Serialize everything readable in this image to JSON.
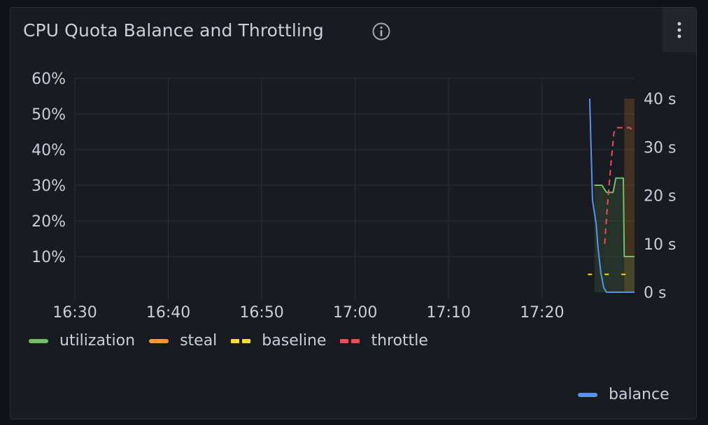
{
  "panel": {
    "title": "CPU Quota Balance and Throttling"
  },
  "colors": {
    "utilization": "#73bf69",
    "steal": "#ff9830",
    "baseline": "#fade2a",
    "throttle": "#f2495c",
    "balance": "#5794f2",
    "grid": "#2c3038",
    "text": "#ccccdc"
  },
  "icons": {
    "info": "info-circle-icon",
    "menu": "kebab-menu-icon"
  },
  "chart_data": {
    "type": "line",
    "x_ticks": [
      "16:30",
      "16:40",
      "16:50",
      "17:00",
      "17:10",
      "17:20"
    ],
    "y_left_ticks": [
      "10%",
      "20%",
      "30%",
      "40%",
      "50%",
      "60%"
    ],
    "y_right_ticks": [
      "0 s",
      "10 s",
      "20 s",
      "30 s",
      "40 s"
    ],
    "x_range_minutes": [
      0,
      59.9
    ],
    "y_left_range": [
      0,
      60
    ],
    "y_right_range": [
      0,
      40
    ],
    "grid": true,
    "legend_placement": "bottom",
    "series": [
      {
        "name": "utilization",
        "axis": "left",
        "style": "solid-fill",
        "color": "#73bf69",
        "points": [
          [
            55.6,
            30
          ],
          [
            56.4,
            30
          ],
          [
            56.9,
            28
          ],
          [
            57.6,
            28
          ],
          [
            57.9,
            32
          ],
          [
            58.7,
            32
          ],
          [
            58.8,
            10
          ],
          [
            59.9,
            10
          ]
        ]
      },
      {
        "name": "steal",
        "axis": "left",
        "style": "solid",
        "color": "#ff9830",
        "points": []
      },
      {
        "name": "baseline",
        "axis": "left",
        "style": "dashed",
        "color": "#fade2a",
        "points": [
          [
            54.9,
            5
          ],
          [
            59.9,
            5
          ]
        ]
      },
      {
        "name": "throttle",
        "axis": "right",
        "style": "dashed",
        "color": "#f2495c",
        "points": [
          [
            56.7,
            10
          ],
          [
            57.0,
            18
          ],
          [
            57.4,
            27
          ],
          [
            57.7,
            33
          ],
          [
            58.0,
            34
          ],
          [
            58.7,
            34
          ],
          [
            59.4,
            34
          ],
          [
            59.9,
            33
          ]
        ]
      },
      {
        "name": "balance",
        "axis": "right",
        "style": "solid",
        "color": "#5794f2",
        "points": [
          [
            55.1,
            40
          ],
          [
            55.4,
            19
          ],
          [
            55.8,
            14
          ],
          [
            56.0,
            9
          ],
          [
            56.3,
            4
          ],
          [
            56.6,
            1
          ],
          [
            56.9,
            0
          ],
          [
            59.9,
            0
          ]
        ]
      }
    ],
    "right_axis_fill": {
      "series": "throttle",
      "x_range": [
        58.8,
        59.9
      ],
      "y_range": [
        0,
        40
      ],
      "color": "#ff9830"
    }
  },
  "legend": {
    "items": [
      {
        "name": "utilization",
        "label": "utilization"
      },
      {
        "name": "steal",
        "label": "steal"
      },
      {
        "name": "baseline",
        "label": "baseline"
      },
      {
        "name": "throttle",
        "label": "throttle"
      }
    ],
    "right_items": [
      {
        "name": "balance",
        "label": "balance"
      }
    ]
  }
}
